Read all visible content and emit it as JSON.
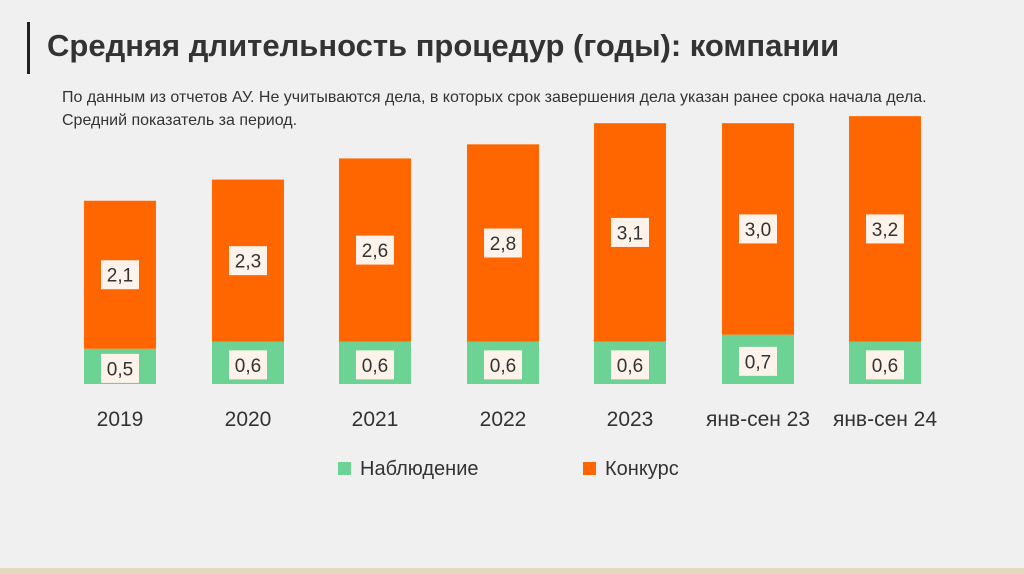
{
  "header": {
    "title": "Средняя длительность процедур (годы): компании",
    "subtitle": "По данным из отчетов АУ. Не учитываются дела, в которых срок завершения дела указан ранее срока начала дела. Средний показатель за период."
  },
  "colors": {
    "observation": "#6dd394",
    "bankruptcy": "#ff6600",
    "label_bg": "#fdf3ea",
    "text": "#333333"
  },
  "chart_data": {
    "type": "bar",
    "stacked": true,
    "title": "Средняя длительность процедур (годы): компании",
    "categories": [
      "2019",
      "2020",
      "2021",
      "2022",
      "2023",
      "янв-сен 23",
      "янв-сен 24"
    ],
    "series": [
      {
        "name": "Наблюдение",
        "values": [
          0.5,
          0.6,
          0.6,
          0.6,
          0.6,
          0.7,
          0.6
        ],
        "labels": [
          "0,5",
          "0,6",
          "0,6",
          "0,6",
          "0,6",
          "0,7",
          "0,6"
        ]
      },
      {
        "name": "Конкурс",
        "values": [
          2.1,
          2.3,
          2.6,
          2.8,
          3.1,
          3.0,
          3.2
        ],
        "labels": [
          "2,1",
          "2,3",
          "2,6",
          "2,8",
          "3,1",
          "3,0",
          "3,2"
        ]
      }
    ],
    "xlabel": "",
    "ylabel": "",
    "ylim": [
      0,
      4.1
    ],
    "legend": "bottom",
    "grid": false
  }
}
